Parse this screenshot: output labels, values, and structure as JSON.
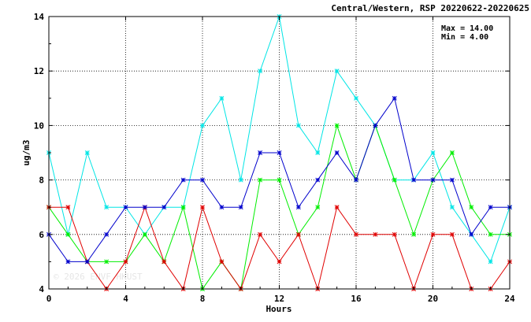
{
  "chart_data": {
    "type": "line",
    "title": "Central/Western, RSP 20220622-20220625",
    "xlabel": "Hours",
    "ylabel": "ug/m3",
    "xlim": [
      0,
      24
    ],
    "ylim": [
      4,
      14
    ],
    "x_ticks": [
      0,
      4,
      8,
      12,
      16,
      20,
      24
    ],
    "y_ticks": [
      4,
      6,
      8,
      10,
      12,
      14
    ],
    "grid": true,
    "max_label": "Max = 14.00",
    "min_label": "Min =  4.00",
    "watermark": "© 2026 ENVF HKUST",
    "x": [
      0,
      1,
      2,
      3,
      4,
      5,
      6,
      7,
      8,
      9,
      10,
      11,
      12,
      13,
      14,
      15,
      16,
      17,
      18,
      19,
      20,
      21,
      22,
      23,
      24
    ],
    "series": [
      {
        "color": "#00e5e5",
        "values": [
          9,
          6,
          9,
          7,
          7,
          6,
          7,
          7,
          10,
          11,
          8,
          12,
          14,
          10,
          9,
          12,
          11,
          10,
          8,
          8,
          9,
          7,
          6,
          5,
          7
        ]
      },
      {
        "color": "#00ee00",
        "values": [
          7,
          6,
          5,
          5,
          5,
          6,
          5,
          7,
          4,
          5,
          4,
          8,
          8,
          6,
          7,
          10,
          8,
          10,
          8,
          6,
          8,
          9,
          7,
          6,
          6
        ]
      },
      {
        "color": "#e00000",
        "values": [
          7,
          7,
          5,
          4,
          5,
          7,
          5,
          4,
          7,
          5,
          4,
          6,
          5,
          6,
          4,
          7,
          6,
          6,
          6,
          4,
          6,
          6,
          4,
          4,
          5
        ]
      },
      {
        "color": "#0000cc",
        "values": [
          6,
          5,
          5,
          6,
          7,
          7,
          7,
          8,
          8,
          7,
          7,
          9,
          9,
          7,
          8,
          9,
          8,
          10,
          11,
          8,
          8,
          8,
          6,
          7,
          7
        ]
      }
    ]
  }
}
